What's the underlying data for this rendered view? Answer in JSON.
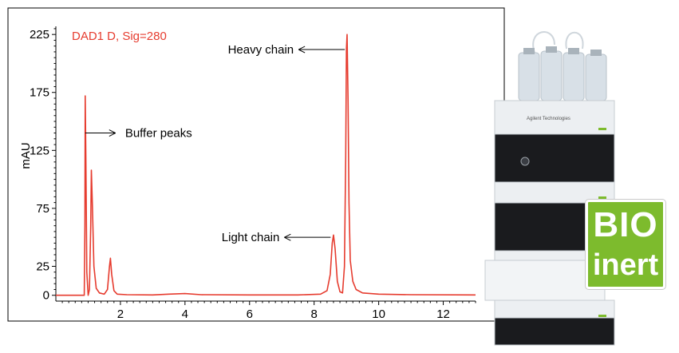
{
  "chart_data": {
    "type": "line",
    "title": "DAD1 D, Sig=280",
    "xlabel": "",
    "ylabel": "mAU",
    "xlim": [
      0,
      13
    ],
    "ylim": [
      -5,
      232
    ],
    "xticks": [
      2,
      4,
      6,
      8,
      10,
      12
    ],
    "yticks": [
      0,
      25,
      75,
      125,
      175,
      225
    ],
    "grid": false,
    "series": [
      {
        "color": "#e63c2f",
        "points": [
          [
            0.0,
            0
          ],
          [
            0.85,
            0
          ],
          [
            0.88,
            0
          ],
          [
            0.9,
            60
          ],
          [
            0.91,
            172
          ],
          [
            0.93,
            120
          ],
          [
            0.96,
            20
          ],
          [
            1.0,
            0
          ],
          [
            1.04,
            5
          ],
          [
            1.08,
            60
          ],
          [
            1.1,
            108
          ],
          [
            1.13,
            80
          ],
          [
            1.18,
            25
          ],
          [
            1.25,
            6
          ],
          [
            1.35,
            2
          ],
          [
            1.5,
            1
          ],
          [
            1.6,
            5
          ],
          [
            1.66,
            25
          ],
          [
            1.69,
            32
          ],
          [
            1.73,
            18
          ],
          [
            1.8,
            4
          ],
          [
            1.9,
            1
          ],
          [
            2.2,
            0.5
          ],
          [
            3.0,
            0.3
          ],
          [
            3.5,
            1
          ],
          [
            4.0,
            1.5
          ],
          [
            4.5,
            0.5
          ],
          [
            6.0,
            0.3
          ],
          [
            7.5,
            0.3
          ],
          [
            8.2,
            1
          ],
          [
            8.4,
            4
          ],
          [
            8.5,
            18
          ],
          [
            8.56,
            45
          ],
          [
            8.6,
            52
          ],
          [
            8.65,
            40
          ],
          [
            8.72,
            12
          ],
          [
            8.8,
            3
          ],
          [
            8.88,
            2
          ],
          [
            8.94,
            25
          ],
          [
            8.98,
            120
          ],
          [
            9.0,
            213
          ],
          [
            9.02,
            225
          ],
          [
            9.05,
            170
          ],
          [
            9.08,
            80
          ],
          [
            9.12,
            30
          ],
          [
            9.2,
            12
          ],
          [
            9.3,
            5
          ],
          [
            9.5,
            2
          ],
          [
            10.0,
            1
          ],
          [
            11.0,
            0.5
          ],
          [
            13.0,
            0.3
          ]
        ]
      }
    ],
    "annotations": [
      {
        "text": "Buffer peaks",
        "x": 0.91,
        "y": 140,
        "direction": "right"
      },
      {
        "text": "Heavy chain",
        "x": 9.0,
        "y": 212,
        "direction": "left"
      },
      {
        "text": "Light chain",
        "x": 8.56,
        "y": 50,
        "direction": "left"
      }
    ]
  },
  "logo": {
    "line1": "BIO",
    "line2": "inert",
    "color": "#7dbb2d"
  },
  "instrument_brand": "Agilent Technologies"
}
